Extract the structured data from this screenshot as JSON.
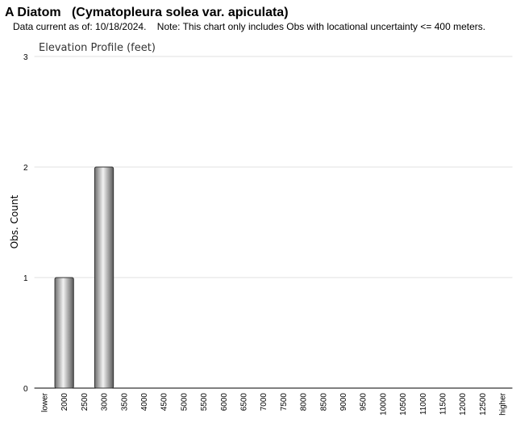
{
  "page": {
    "title": "A Diatom   (Cymatopleura solea var. apiculata)",
    "subtitle": "Data current as of: 10/18/2024.    Note: This chart only includes Obs with locational uncertainty <= 400 meters."
  },
  "chart_data": {
    "type": "bar",
    "title": "Elevation Profile (feet)",
    "y_label": "Obs. Count",
    "categories": [
      "lower",
      "2000",
      "2500",
      "3000",
      "3500",
      "4000",
      "4500",
      "5000",
      "5500",
      "6000",
      "6500",
      "7000",
      "7500",
      "8000",
      "8500",
      "9000",
      "9500",
      "10000",
      "10500",
      "11000",
      "11500",
      "12000",
      "12500",
      "higher"
    ],
    "values": [
      0,
      1,
      0,
      2,
      0,
      0,
      0,
      0,
      0,
      0,
      0,
      0,
      0,
      0,
      0,
      0,
      0,
      0,
      0,
      0,
      0,
      0,
      0,
      0
    ],
    "color": "#999999",
    "ylim": [
      0,
      3
    ],
    "yticks": [
      0,
      1,
      2,
      3
    ],
    "grid": true
  }
}
